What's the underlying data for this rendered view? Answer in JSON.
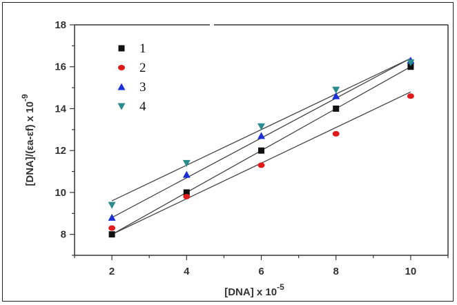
{
  "chart_data": {
    "type": "scatter",
    "title": "",
    "xlabel": "[DNA] x 10",
    "xlabel_exp": "-5",
    "ylabel": "[DNA]/(εa-εf) x 10",
    "ylabel_exp": "-9",
    "xlim": [
      1,
      11
    ],
    "ylim": [
      7,
      18
    ],
    "xticks": [
      2,
      4,
      6,
      8,
      10
    ],
    "yticks": [
      8,
      10,
      12,
      14,
      16,
      18
    ],
    "grid": false,
    "legend_position": "top-left",
    "series": [
      {
        "name": "1",
        "marker": "square",
        "color": "#111111",
        "x": [
          2,
          4,
          6,
          8,
          10
        ],
        "y": [
          8.0,
          10.0,
          12.0,
          14.0,
          16.0
        ],
        "fit": [
          [
            2,
            8.0
          ],
          [
            10,
            16.0
          ]
        ]
      },
      {
        "name": "2",
        "marker": "circle",
        "color": "#e01b1b",
        "x": [
          2,
          4,
          6,
          8,
          10
        ],
        "y": [
          8.3,
          9.8,
          11.3,
          12.8,
          14.6
        ],
        "fit": [
          [
            2,
            8.0
          ],
          [
            10,
            14.8
          ]
        ]
      },
      {
        "name": "3",
        "marker": "triangle-up",
        "color": "#1a2fd6",
        "x": [
          2,
          4,
          6,
          8,
          10
        ],
        "y": [
          8.8,
          10.85,
          12.7,
          14.6,
          16.3
        ],
        "fit": [
          [
            2,
            8.8
          ],
          [
            10,
            16.4
          ]
        ]
      },
      {
        "name": "4",
        "marker": "triangle-down",
        "color": "#2a8c8c",
        "x": [
          2,
          4,
          6,
          8,
          10
        ],
        "y": [
          9.4,
          11.4,
          13.15,
          14.9,
          16.2
        ],
        "fit": [
          [
            2,
            9.6
          ],
          [
            10,
            16.4
          ]
        ]
      }
    ]
  }
}
